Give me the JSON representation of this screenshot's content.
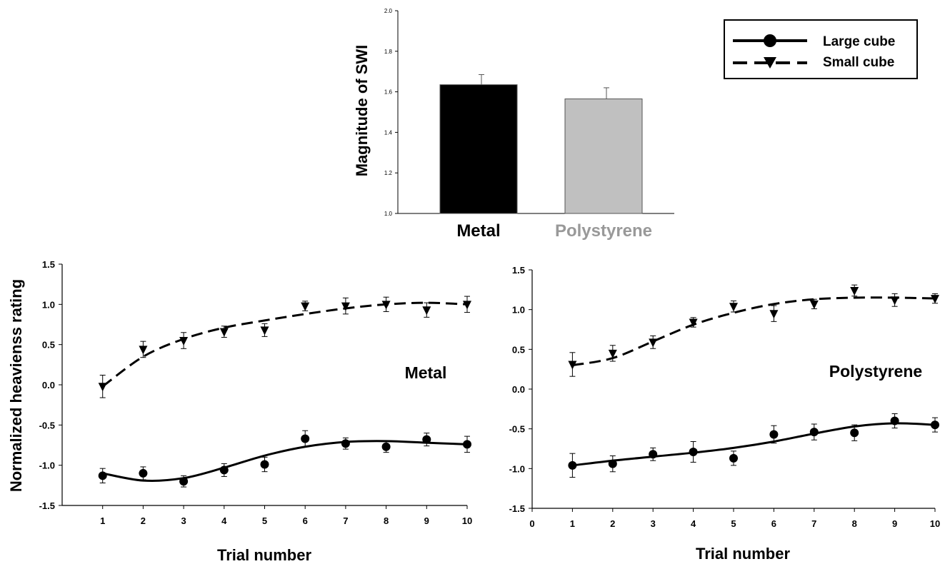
{
  "chart_data": [
    {
      "type": "bar",
      "title": "",
      "xlabel": "",
      "ylabel": "Magnitude of SWI",
      "ylim": [
        1.0,
        2.0
      ],
      "yticks": [
        "1.0",
        "1.2",
        "1.4",
        "1.6",
        "1.8",
        "2.0"
      ],
      "categories": [
        "Metal",
        "Polystyrene"
      ],
      "values": [
        1.635,
        1.565
      ],
      "errors": [
        0.05,
        0.055
      ],
      "colors": [
        "#000000",
        "#c0c0c0"
      ],
      "label_colors": [
        "#000000",
        "#999999"
      ],
      "grid": false
    },
    {
      "type": "line",
      "panel_label": "Metal",
      "panel_label_color": "#000000",
      "xlabel": "Trial number",
      "ylabel": "Normalized heavienss rating",
      "ylim": [
        -1.5,
        1.5
      ],
      "xlim": [
        0,
        10
      ],
      "yticks": [
        "-1.5",
        "-1.0",
        "-0.5",
        "0.0",
        "0.5",
        "1.0",
        "1.5"
      ],
      "xticks": [
        "1",
        "2",
        "3",
        "4",
        "5",
        "6",
        "7",
        "8",
        "9",
        "10"
      ],
      "grid": false,
      "series": [
        {
          "name": "Large cube",
          "marker": "circle",
          "line": "solid",
          "x": [
            1,
            2,
            3,
            4,
            5,
            6,
            7,
            8,
            9,
            10
          ],
          "y": [
            -1.13,
            -1.1,
            -1.2,
            -1.06,
            -0.99,
            -0.67,
            -0.73,
            -0.77,
            -0.68,
            -0.74
          ],
          "err": [
            0.09,
            0.08,
            0.07,
            0.08,
            0.09,
            0.1,
            0.07,
            0.07,
            0.08,
            0.1
          ],
          "fit": [
            -1.1,
            -1.19,
            -1.16,
            -1.03,
            -0.88,
            -0.77,
            -0.71,
            -0.7,
            -0.72,
            -0.74
          ]
        },
        {
          "name": "Small cube",
          "marker": "triangle-down",
          "line": "dashed",
          "x": [
            1,
            2,
            3,
            4,
            5,
            6,
            7,
            8,
            9,
            10
          ],
          "y": [
            -0.02,
            0.44,
            0.55,
            0.66,
            0.68,
            0.98,
            0.98,
            1.0,
            0.93,
            1.0
          ],
          "err": [
            0.14,
            0.1,
            0.1,
            0.07,
            0.08,
            0.06,
            0.1,
            0.09,
            0.09,
            0.1
          ],
          "fit": [
            -0.02,
            0.35,
            0.57,
            0.71,
            0.8,
            0.88,
            0.95,
            1.0,
            1.02,
            1.0
          ]
        }
      ]
    },
    {
      "type": "line",
      "panel_label": "Polystyrene",
      "panel_label_color": "#a0a0a0",
      "xlabel": "Trial number",
      "ylabel": "",
      "ylim": [
        -1.5,
        1.5
      ],
      "xlim": [
        0,
        10
      ],
      "yticks": [
        "-1.5",
        "-1.0",
        "-0.5",
        "0.0",
        "0.5",
        "1.0",
        "1.5"
      ],
      "xticks": [
        "0",
        "1",
        "2",
        "3",
        "4",
        "5",
        "6",
        "7",
        "8",
        "9",
        "10"
      ],
      "grid": false,
      "series": [
        {
          "name": "Large cube",
          "marker": "circle",
          "line": "solid",
          "x": [
            1,
            2,
            3,
            4,
            5,
            6,
            7,
            8,
            9,
            10
          ],
          "y": [
            -0.96,
            -0.94,
            -0.82,
            -0.79,
            -0.87,
            -0.57,
            -0.54,
            -0.55,
            -0.4,
            -0.45
          ],
          "err": [
            0.15,
            0.1,
            0.08,
            0.13,
            0.09,
            0.11,
            0.1,
            0.1,
            0.09,
            0.09
          ],
          "fit": [
            -0.96,
            -0.9,
            -0.85,
            -0.8,
            -0.74,
            -0.66,
            -0.56,
            -0.47,
            -0.43,
            -0.45
          ]
        },
        {
          "name": "Small cube",
          "marker": "triangle-down",
          "line": "dashed",
          "x": [
            1,
            2,
            3,
            4,
            5,
            6,
            7,
            8,
            9,
            10
          ],
          "y": [
            0.31,
            0.45,
            0.59,
            0.84,
            1.04,
            0.95,
            1.07,
            1.24,
            1.12,
            1.14
          ],
          "err": [
            0.15,
            0.1,
            0.08,
            0.06,
            0.07,
            0.1,
            0.06,
            0.07,
            0.08,
            0.06
          ],
          "fit": [
            0.3,
            0.39,
            0.6,
            0.81,
            0.96,
            1.07,
            1.13,
            1.15,
            1.15,
            1.14
          ]
        }
      ]
    }
  ],
  "legend": {
    "placement": "top-right",
    "entries": [
      {
        "label": "Large cube",
        "marker": "circle",
        "line": "solid"
      },
      {
        "label": "Small cube",
        "marker": "triangle-down",
        "line": "dashed"
      }
    ]
  }
}
